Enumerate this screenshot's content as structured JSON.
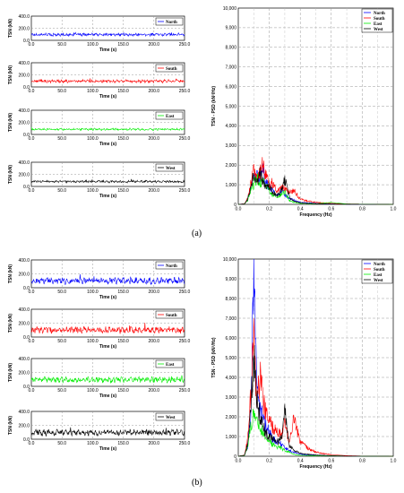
{
  "captions": {
    "a": "(a)",
    "b": "(b)"
  },
  "colors": {
    "North": "#0000ff",
    "South": "#ff0000",
    "East": "#00ee00",
    "West": "#000000"
  },
  "chart_data": [
    {
      "panel": "a",
      "kind": "time",
      "type": "line",
      "series_name": "North",
      "xlabel": "Time (s)",
      "ylabel": "TSN (kN)",
      "xlim": [
        0,
        250
      ],
      "ylim": [
        0,
        400
      ],
      "x_ticks": [
        "0.0",
        "50.0",
        "100.0",
        "150.0",
        "200.0",
        "250.0"
      ],
      "y_ticks": [
        "0.0",
        "200.0",
        "400.0"
      ],
      "legend": "North",
      "legend_placement": "top-right",
      "grid": true,
      "mean": 95,
      "amplitude": 55
    },
    {
      "panel": "a",
      "kind": "time",
      "type": "line",
      "series_name": "South",
      "xlabel": "Time (s)",
      "ylabel": "TSN (kN)",
      "xlim": [
        0,
        250
      ],
      "ylim": [
        0,
        400
      ],
      "x_ticks": [
        "0.0",
        "50.0",
        "100.0",
        "150.0",
        "200.0",
        "250.0"
      ],
      "y_ticks": [
        "0.0",
        "200.0",
        "400.0"
      ],
      "legend": "South",
      "legend_placement": "top-right",
      "grid": true,
      "mean": 95,
      "amplitude": 60
    },
    {
      "panel": "a",
      "kind": "time",
      "type": "line",
      "series_name": "East",
      "xlabel": "Time (s)",
      "ylabel": "TSN (kN)",
      "xlim": [
        0,
        250
      ],
      "ylim": [
        0,
        400
      ],
      "x_ticks": [
        "0.0",
        "50.0",
        "100.0",
        "150.0",
        "200.0",
        "250.0"
      ],
      "y_ticks": [
        "0.0",
        "200.0",
        "400.0"
      ],
      "legend": "East",
      "legend_placement": "top-right",
      "grid": true,
      "mean": 85,
      "amplitude": 40
    },
    {
      "panel": "a",
      "kind": "time",
      "type": "line",
      "series_name": "West",
      "xlabel": "Time (s)",
      "ylabel": "TSN (kN)",
      "xlim": [
        0,
        250
      ],
      "ylim": [
        0,
        400
      ],
      "x_ticks": [
        "0.0",
        "50.0",
        "100.0",
        "150.0",
        "200.0",
        "250.0"
      ],
      "y_ticks": [
        "0.0",
        "200.0",
        "400.0"
      ],
      "legend": "West",
      "legend_placement": "top-right",
      "grid": true,
      "mean": 80,
      "amplitude": 45
    },
    {
      "panel": "a",
      "kind": "psd",
      "type": "line",
      "xlabel": "Frequency (Hz)",
      "ylabel": "TSN - PSD (kN²/Hz)",
      "xlim": [
        0,
        1
      ],
      "ylim": [
        0,
        10000
      ],
      "x_ticks": [
        "0.0",
        "0.2",
        "0.4",
        "0.6",
        "0.8",
        "1.0"
      ],
      "y_ticks": [
        "0",
        "1,000",
        "2,000",
        "3,000",
        "4,000",
        "5,000",
        "6,000",
        "7,000",
        "8,000",
        "9,000",
        "10,000"
      ],
      "legend_placement": "top-right",
      "grid": true,
      "series": [
        {
          "name": "North",
          "points": [
            [
              0.0,
              0
            ],
            [
              0.04,
              30
            ],
            [
              0.06,
              250
            ],
            [
              0.08,
              900
            ],
            [
              0.1,
              1300
            ],
            [
              0.12,
              1900
            ],
            [
              0.14,
              1200
            ],
            [
              0.16,
              1900
            ],
            [
              0.18,
              1100
            ],
            [
              0.2,
              900
            ],
            [
              0.22,
              700
            ],
            [
              0.25,
              500
            ],
            [
              0.28,
              750
            ],
            [
              0.3,
              500
            ],
            [
              0.33,
              300
            ],
            [
              0.36,
              200
            ],
            [
              0.4,
              100
            ],
            [
              0.5,
              50
            ],
            [
              0.6,
              20
            ],
            [
              0.7,
              10
            ],
            [
              0.8,
              5
            ],
            [
              1.0,
              0
            ]
          ]
        },
        {
          "name": "South",
          "points": [
            [
              0.0,
              0
            ],
            [
              0.04,
              30
            ],
            [
              0.06,
              300
            ],
            [
              0.08,
              1000
            ],
            [
              0.1,
              1700
            ],
            [
              0.12,
              1300
            ],
            [
              0.14,
              1600
            ],
            [
              0.16,
              2100
            ],
            [
              0.18,
              1400
            ],
            [
              0.2,
              1000
            ],
            [
              0.22,
              1100
            ],
            [
              0.25,
              650
            ],
            [
              0.28,
              900
            ],
            [
              0.3,
              800
            ],
            [
              0.33,
              650
            ],
            [
              0.36,
              700
            ],
            [
              0.4,
              250
            ],
            [
              0.5,
              100
            ],
            [
              0.6,
              50
            ],
            [
              0.7,
              20
            ],
            [
              0.8,
              10
            ],
            [
              1.0,
              0
            ]
          ]
        },
        {
          "name": "East",
          "points": [
            [
              0.0,
              0
            ],
            [
              0.04,
              20
            ],
            [
              0.06,
              200
            ],
            [
              0.08,
              700
            ],
            [
              0.1,
              1000
            ],
            [
              0.12,
              1400
            ],
            [
              0.14,
              1000
            ],
            [
              0.16,
              1300
            ],
            [
              0.18,
              1000
            ],
            [
              0.2,
              700
            ],
            [
              0.22,
              500
            ],
            [
              0.25,
              400
            ],
            [
              0.28,
              500
            ],
            [
              0.3,
              700
            ],
            [
              0.33,
              200
            ],
            [
              0.36,
              100
            ],
            [
              0.4,
              50
            ],
            [
              0.5,
              30
            ],
            [
              0.6,
              100
            ],
            [
              0.7,
              20
            ],
            [
              0.8,
              10
            ],
            [
              1.0,
              0
            ]
          ]
        },
        {
          "name": "West",
          "points": [
            [
              0.0,
              0
            ],
            [
              0.04,
              20
            ],
            [
              0.06,
              250
            ],
            [
              0.08,
              900
            ],
            [
              0.1,
              1500
            ],
            [
              0.12,
              1000
            ],
            [
              0.14,
              1600
            ],
            [
              0.16,
              1200
            ],
            [
              0.18,
              900
            ],
            [
              0.2,
              1000
            ],
            [
              0.22,
              600
            ],
            [
              0.25,
              500
            ],
            [
              0.28,
              700
            ],
            [
              0.3,
              1300
            ],
            [
              0.33,
              350
            ],
            [
              0.36,
              150
            ],
            [
              0.4,
              80
            ],
            [
              0.5,
              40
            ],
            [
              0.6,
              20
            ],
            [
              0.7,
              10
            ],
            [
              0.8,
              5
            ],
            [
              1.0,
              0
            ]
          ]
        }
      ]
    },
    {
      "panel": "b",
      "kind": "time",
      "type": "line",
      "series_name": "North",
      "xlabel": "Time (s)",
      "ylabel": "TSN (kN)",
      "xlim": [
        0,
        250
      ],
      "ylim": [
        0,
        400
      ],
      "x_ticks": [
        "0.0",
        "50.0",
        "100.0",
        "150.0",
        "200.0",
        "250.0"
      ],
      "y_ticks": [
        "0.0",
        "200.0",
        "400.0"
      ],
      "legend": "North",
      "legend_placement": "top-right",
      "grid": true,
      "mean": 100,
      "amplitude": 110
    },
    {
      "panel": "b",
      "kind": "time",
      "type": "line",
      "series_name": "South",
      "xlabel": "Time (s)",
      "ylabel": "TSN (kN)",
      "xlim": [
        0,
        250
      ],
      "ylim": [
        0,
        400
      ],
      "x_ticks": [
        "0.0",
        "50.0",
        "100.0",
        "150.0",
        "200.0",
        "250.0"
      ],
      "y_ticks": [
        "0.0",
        "200.0",
        "400.0"
      ],
      "legend": "South",
      "legend_placement": "top-right",
      "grid": true,
      "mean": 100,
      "amplitude": 110
    },
    {
      "panel": "b",
      "kind": "time",
      "type": "line",
      "series_name": "East",
      "xlabel": "Time (s)",
      "ylabel": "TSN (kN)",
      "xlim": [
        0,
        250
      ],
      "ylim": [
        0,
        400
      ],
      "x_ticks": [
        "0.0",
        "50.0",
        "100.0",
        "150.0",
        "200.0",
        "250.0"
      ],
      "y_ticks": [
        "0.0",
        "200.0",
        "400.0"
      ],
      "legend": "East",
      "legend_placement": "top-right",
      "grid": true,
      "mean": 95,
      "amplitude": 95
    },
    {
      "panel": "b",
      "kind": "time",
      "type": "line",
      "series_name": "West",
      "xlabel": "Time (s)",
      "ylabel": "TSN (kN)",
      "xlim": [
        0,
        250
      ],
      "ylim": [
        0,
        400
      ],
      "x_ticks": [
        "0.0",
        "50.0",
        "100.0",
        "150.0",
        "200.0",
        "250.0"
      ],
      "y_ticks": [
        "0.0",
        "200.0",
        "400.0"
      ],
      "legend": "West",
      "legend_placement": "top-right",
      "grid": true,
      "mean": 95,
      "amplitude": 100
    },
    {
      "panel": "b",
      "kind": "psd",
      "type": "line",
      "xlabel": "Frequency (Hz)",
      "ylabel": "TSN - PSD (kN²/Hz)",
      "xlim": [
        0,
        1
      ],
      "ylim": [
        0,
        10000
      ],
      "x_ticks": [
        "0.0",
        "0.2",
        "0.4",
        "0.6",
        "0.8",
        "1.0"
      ],
      "y_ticks": [
        "0",
        "1,000",
        "2,000",
        "3,000",
        "4,000",
        "5,000",
        "6,000",
        "7,000",
        "8,000",
        "9,000",
        "10,000"
      ],
      "legend_placement": "top-right",
      "grid": true,
      "series": [
        {
          "name": "North",
          "points": [
            [
              0.0,
              0
            ],
            [
              0.04,
              50
            ],
            [
              0.06,
              500
            ],
            [
              0.08,
              2000
            ],
            [
              0.1,
              9000
            ],
            [
              0.12,
              3500
            ],
            [
              0.14,
              2500
            ],
            [
              0.16,
              1800
            ],
            [
              0.18,
              1500
            ],
            [
              0.2,
              1200
            ],
            [
              0.22,
              900
            ],
            [
              0.25,
              700
            ],
            [
              0.28,
              600
            ],
            [
              0.3,
              400
            ],
            [
              0.33,
              300
            ],
            [
              0.36,
              200
            ],
            [
              0.4,
              100
            ],
            [
              0.5,
              50
            ],
            [
              0.6,
              20
            ],
            [
              0.7,
              10
            ],
            [
              0.8,
              5
            ],
            [
              1.0,
              0
            ]
          ]
        },
        {
          "name": "South",
          "points": [
            [
              0.0,
              0
            ],
            [
              0.04,
              60
            ],
            [
              0.06,
              800
            ],
            [
              0.08,
              3000
            ],
            [
              0.1,
              5600
            ],
            [
              0.12,
              3000
            ],
            [
              0.14,
              4000
            ],
            [
              0.16,
              2800
            ],
            [
              0.18,
              2200
            ],
            [
              0.2,
              1800
            ],
            [
              0.22,
              1500
            ],
            [
              0.25,
              1300
            ],
            [
              0.28,
              1000
            ],
            [
              0.3,
              1600
            ],
            [
              0.33,
              800
            ],
            [
              0.36,
              1900
            ],
            [
              0.4,
              700
            ],
            [
              0.45,
              400
            ],
            [
              0.5,
              200
            ],
            [
              0.6,
              80
            ],
            [
              0.7,
              30
            ],
            [
              0.8,
              10
            ],
            [
              1.0,
              0
            ]
          ]
        },
        {
          "name": "East",
          "points": [
            [
              0.0,
              0
            ],
            [
              0.04,
              40
            ],
            [
              0.06,
              500
            ],
            [
              0.08,
              1500
            ],
            [
              0.1,
              2400
            ],
            [
              0.12,
              1800
            ],
            [
              0.14,
              1500
            ],
            [
              0.16,
              1200
            ],
            [
              0.18,
              1000
            ],
            [
              0.2,
              800
            ],
            [
              0.22,
              600
            ],
            [
              0.25,
              500
            ],
            [
              0.28,
              400
            ],
            [
              0.3,
              300
            ],
            [
              0.33,
              200
            ],
            [
              0.36,
              100
            ],
            [
              0.4,
              50
            ],
            [
              0.5,
              30
            ],
            [
              0.6,
              20
            ],
            [
              0.7,
              10
            ],
            [
              0.8,
              5
            ],
            [
              1.0,
              0
            ]
          ]
        },
        {
          "name": "West",
          "points": [
            [
              0.0,
              0
            ],
            [
              0.04,
              50
            ],
            [
              0.06,
              600
            ],
            [
              0.08,
              2200
            ],
            [
              0.1,
              5200
            ],
            [
              0.12,
              3000
            ],
            [
              0.14,
              2000
            ],
            [
              0.16,
              1500
            ],
            [
              0.18,
              1200
            ],
            [
              0.2,
              1000
            ],
            [
              0.22,
              900
            ],
            [
              0.25,
              700
            ],
            [
              0.28,
              900
            ],
            [
              0.3,
              2300
            ],
            [
              0.33,
              500
            ],
            [
              0.36,
              300
            ],
            [
              0.4,
              150
            ],
            [
              0.5,
              60
            ],
            [
              0.6,
              30
            ],
            [
              0.7,
              10
            ],
            [
              0.8,
              5
            ],
            [
              1.0,
              0
            ]
          ]
        }
      ]
    }
  ]
}
